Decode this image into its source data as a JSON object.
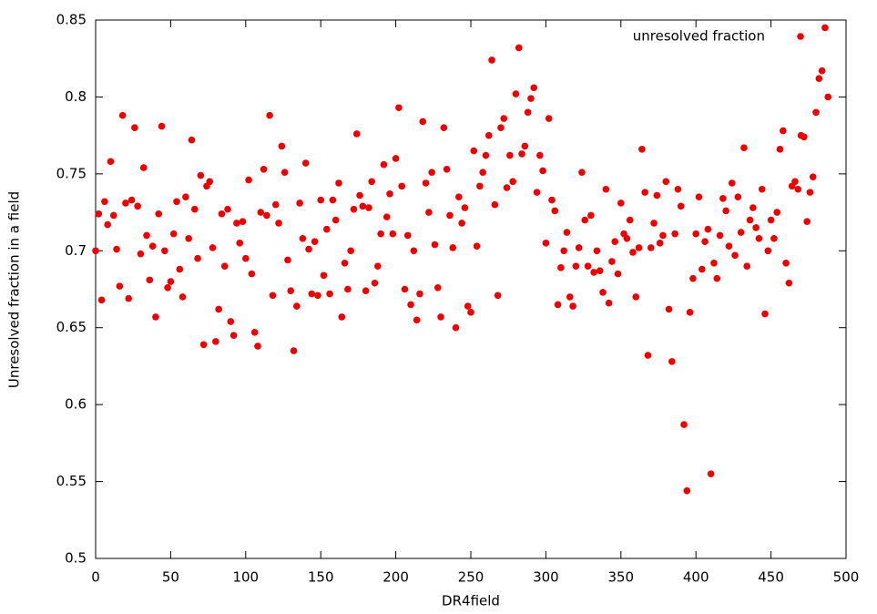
{
  "chart_data": {
    "type": "scatter",
    "xlabel": "DR4field",
    "ylabel": "Unresolved fraction in a field",
    "xlim": [
      0,
      500
    ],
    "xticks": [
      0,
      50,
      100,
      150,
      200,
      250,
      300,
      350,
      400,
      450,
      500
    ],
    "ylim": [
      0.5,
      0.85
    ],
    "yticks": [
      0.5,
      0.55,
      0.6,
      0.65,
      0.7,
      0.75,
      0.8,
      0.85
    ],
    "legend": "upper right",
    "series": [
      {
        "name": "unresolved fraction",
        "color": "#ee0000",
        "x": [
          0,
          2,
          4,
          6,
          8,
          10,
          12,
          14,
          16,
          18,
          20,
          22,
          24,
          26,
          28,
          30,
          32,
          34,
          36,
          38,
          40,
          42,
          44,
          46,
          48,
          50,
          52,
          54,
          56,
          58,
          60,
          62,
          64,
          66,
          68,
          70,
          72,
          74,
          76,
          78,
          80,
          82,
          84,
          86,
          88,
          90,
          92,
          94,
          96,
          98,
          100,
          102,
          104,
          106,
          108,
          110,
          112,
          114,
          116,
          118,
          120,
          122,
          124,
          126,
          128,
          130,
          132,
          134,
          136,
          138,
          140,
          142,
          144,
          146,
          148,
          150,
          152,
          154,
          156,
          158,
          160,
          162,
          164,
          166,
          168,
          170,
          172,
          174,
          176,
          178,
          180,
          182,
          184,
          186,
          188,
          190,
          192,
          194,
          196,
          198,
          200,
          202,
          204,
          206,
          208,
          210,
          212,
          214,
          216,
          218,
          220,
          222,
          224,
          226,
          228,
          230,
          232,
          234,
          236,
          238,
          240,
          242,
          244,
          246,
          248,
          250,
          252,
          254,
          256,
          258,
          260,
          262,
          264,
          266,
          268,
          270,
          272,
          274,
          276,
          278,
          280,
          282,
          284,
          286,
          288,
          290,
          292,
          294,
          296,
          298,
          300,
          302,
          304,
          306,
          308,
          310,
          312,
          314,
          316,
          318,
          320,
          322,
          324,
          326,
          328,
          330,
          332,
          334,
          336,
          338,
          340,
          342,
          344,
          346,
          348,
          350,
          352,
          354,
          356,
          358,
          360,
          362,
          364,
          366,
          368,
          370,
          372,
          374,
          376,
          378,
          380,
          382,
          384,
          386,
          388,
          390,
          392,
          394,
          396,
          398,
          400,
          402,
          404,
          406,
          408,
          410,
          412,
          414,
          416,
          418,
          420,
          422,
          424,
          426,
          428,
          430,
          432,
          434,
          436,
          438,
          440,
          442,
          444,
          446,
          448,
          450,
          452,
          454,
          456,
          458,
          460,
          462,
          464,
          466,
          468,
          470,
          472,
          474,
          476,
          478,
          480,
          482,
          484,
          486,
          488
        ],
        "values": [
          0.7,
          0.724,
          0.668,
          0.732,
          0.717,
          0.758,
          0.723,
          0.701,
          0.677,
          0.788,
          0.731,
          0.669,
          0.733,
          0.78,
          0.729,
          0.698,
          0.754,
          0.71,
          0.681,
          0.703,
          0.657,
          0.724,
          0.781,
          0.7,
          0.676,
          0.68,
          0.711,
          0.732,
          0.688,
          0.67,
          0.735,
          0.708,
          0.772,
          0.727,
          0.695,
          0.749,
          0.639,
          0.742,
          0.745,
          0.702,
          0.641,
          0.662,
          0.724,
          0.69,
          0.727,
          0.654,
          0.645,
          0.718,
          0.705,
          0.719,
          0.695,
          0.746,
          0.685,
          0.647,
          0.638,
          0.725,
          0.753,
          0.723,
          0.788,
          0.671,
          0.73,
          0.718,
          0.768,
          0.751,
          0.694,
          0.674,
          0.635,
          0.664,
          0.731,
          0.708,
          0.757,
          0.701,
          0.672,
          0.706,
          0.671,
          0.733,
          0.684,
          0.714,
          0.672,
          0.733,
          0.72,
          0.744,
          0.657,
          0.692,
          0.675,
          0.7,
          0.727,
          0.776,
          0.736,
          0.729,
          0.674,
          0.728,
          0.745,
          0.679,
          0.69,
          0.711,
          0.756,
          0.722,
          0.737,
          0.711,
          0.76,
          0.793,
          0.742,
          0.675,
          0.71,
          0.665,
          0.7,
          0.655,
          0.672,
          0.784,
          0.744,
          0.725,
          0.751,
          0.704,
          0.676,
          0.657,
          0.78,
          0.753,
          0.723,
          0.702,
          0.65,
          0.735,
          0.718,
          0.728,
          0.664,
          0.66,
          0.765,
          0.703,
          0.742,
          0.751,
          0.762,
          0.775,
          0.824,
          0.73,
          0.671,
          0.78,
          0.786,
          0.741,
          0.762,
          0.745,
          0.802,
          0.832,
          0.763,
          0.768,
          0.79,
          0.799,
          0.806,
          0.738,
          0.762,
          0.752,
          0.705,
          0.786,
          0.733,
          0.726,
          0.665,
          0.689,
          0.7,
          0.712,
          0.67,
          0.664,
          0.69,
          0.702,
          0.751,
          0.72,
          0.69,
          0.723,
          0.686,
          0.7,
          0.687,
          0.673,
          0.74,
          0.666,
          0.693,
          0.706,
          0.685,
          0.731,
          0.711,
          0.708,
          0.72,
          0.699,
          0.67,
          0.702,
          0.766,
          0.738,
          0.632,
          0.702,
          0.718,
          0.736,
          0.705,
          0.71,
          0.745,
          0.662,
          0.628,
          0.711,
          0.74,
          0.729,
          0.587,
          0.544,
          0.66,
          0.682,
          0.711,
          0.735,
          0.688,
          0.706,
          0.714,
          0.555,
          0.692,
          0.682,
          0.71,
          0.734,
          0.726,
          0.703,
          0.744,
          0.697,
          0.735,
          0.712,
          0.767,
          0.69,
          0.72,
          0.728,
          0.715,
          0.708,
          0.74,
          0.659,
          0.7,
          0.72,
          0.708,
          0.725,
          0.766,
          0.778,
          0.692,
          0.679,
          0.742,
          0.745,
          0.74,
          0.775,
          0.774,
          0.719,
          0.738,
          0.748,
          0.79,
          0.812,
          0.817,
          0.845,
          0.8
        ]
      }
    ]
  }
}
